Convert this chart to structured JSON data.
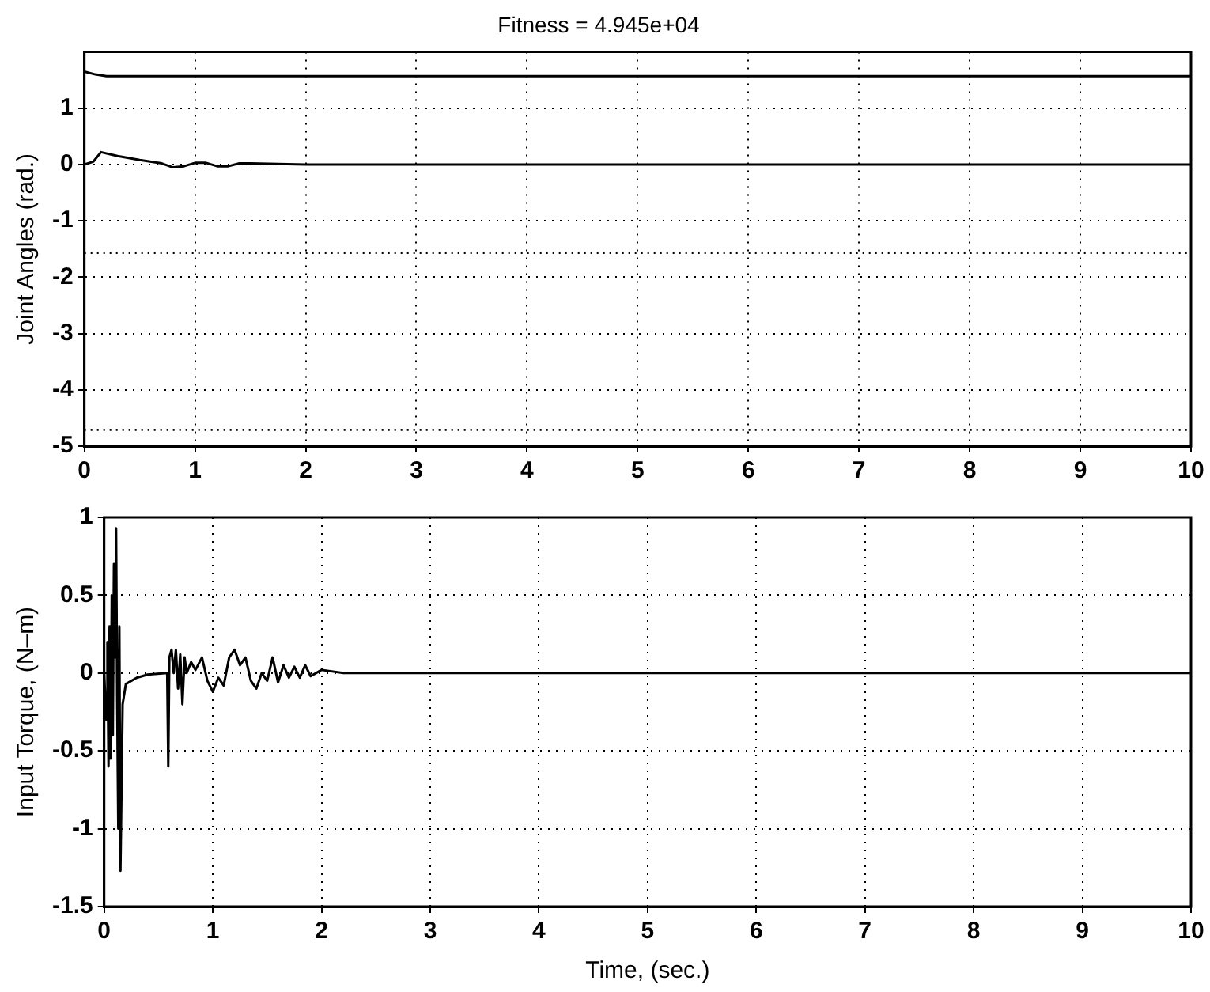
{
  "chart_data": [
    {
      "type": "line",
      "title": "Fitness = 4.945e+04",
      "ylabel": "Joint Angles (rad.)",
      "xlim": [
        0,
        10
      ],
      "xticks": [
        0,
        1,
        2,
        3,
        4,
        5,
        6,
        7,
        8,
        9,
        10
      ],
      "ylim": [
        -5,
        2
      ],
      "yticks": [
        -5,
        -4,
        -3,
        -2,
        -1,
        0,
        1
      ],
      "grid": true,
      "legend": false,
      "line_style": "solid",
      "marker": "none",
      "series": [
        {
          "color": "#000000",
          "x": [
            0,
            0.1,
            0.2,
            0.5,
            1,
            2,
            5,
            10
          ],
          "values": [
            1.65,
            1.6,
            1.57,
            1.57,
            1.57,
            1.57,
            1.57,
            1.57
          ]
        },
        {
          "color": "#000000",
          "x": [
            0,
            0.08,
            0.15,
            0.3,
            0.5,
            0.7,
            0.8,
            0.9,
            1.0,
            1.1,
            1.2,
            1.3,
            1.4,
            1.5,
            2,
            10
          ],
          "values": [
            0,
            0.05,
            0.22,
            0.15,
            0.08,
            0.02,
            -0.05,
            -0.03,
            0.03,
            0.03,
            -0.03,
            -0.03,
            0.02,
            0.02,
            0,
            0
          ]
        }
      ],
      "ref_lines": [
        {
          "axis": "y",
          "value": -1.57,
          "line_style": "dotted",
          "color": "#000000"
        },
        {
          "axis": "y",
          "value": -4.71,
          "line_style": "dotted",
          "color": "#000000"
        }
      ]
    },
    {
      "type": "line",
      "xlabel": "Time, (sec.)",
      "ylabel": "Input Torque, (N–m)",
      "xlim": [
        0,
        10
      ],
      "xticks": [
        0,
        1,
        2,
        3,
        4,
        5,
        6,
        7,
        8,
        9,
        10
      ],
      "ylim": [
        -1.5,
        1
      ],
      "yticks": [
        -1.5,
        -1,
        -0.5,
        0,
        0.5,
        1
      ],
      "grid": true,
      "legend": false,
      "line_style": "solid",
      "marker": "none",
      "series": [
        {
          "color": "#000000",
          "x": [
            0,
            0.02,
            0.03,
            0.04,
            0.05,
            0.06,
            0.07,
            0.08,
            0.09,
            0.1,
            0.11,
            0.12,
            0.13,
            0.14,
            0.15,
            0.17,
            0.2,
            0.3,
            0.4,
            0.58,
            0.59,
            0.6,
            0.62,
            0.64,
            0.66,
            0.68,
            0.7,
            0.72,
            0.74,
            0.76,
            0.8,
            0.84,
            0.9,
            0.95,
            1.0,
            1.05,
            1.1,
            1.15,
            1.2,
            1.25,
            1.3,
            1.35,
            1.4,
            1.45,
            1.5,
            1.55,
            1.6,
            1.65,
            1.7,
            1.75,
            1.8,
            1.85,
            1.9,
            2.0,
            2.2,
            3,
            10
          ],
          "values": [
            0,
            -0.3,
            0.2,
            -0.6,
            0.3,
            -0.55,
            0.5,
            -0.4,
            0.7,
            0.1,
            0.93,
            -0.2,
            -1.0,
            0.3,
            -1.27,
            -0.2,
            -0.07,
            -0.03,
            -0.01,
            0,
            -0.6,
            0.1,
            0.15,
            0,
            0.15,
            -0.1,
            0.12,
            -0.2,
            0.1,
            0,
            0.07,
            0.02,
            0.1,
            -0.05,
            -0.12,
            -0.03,
            -0.08,
            0.1,
            0.15,
            0.05,
            0.1,
            -0.05,
            -0.1,
            0,
            -0.05,
            0.1,
            -0.06,
            0.05,
            -0.03,
            0.04,
            -0.03,
            0.05,
            -0.02,
            0.02,
            0,
            0,
            0
          ]
        }
      ]
    }
  ]
}
